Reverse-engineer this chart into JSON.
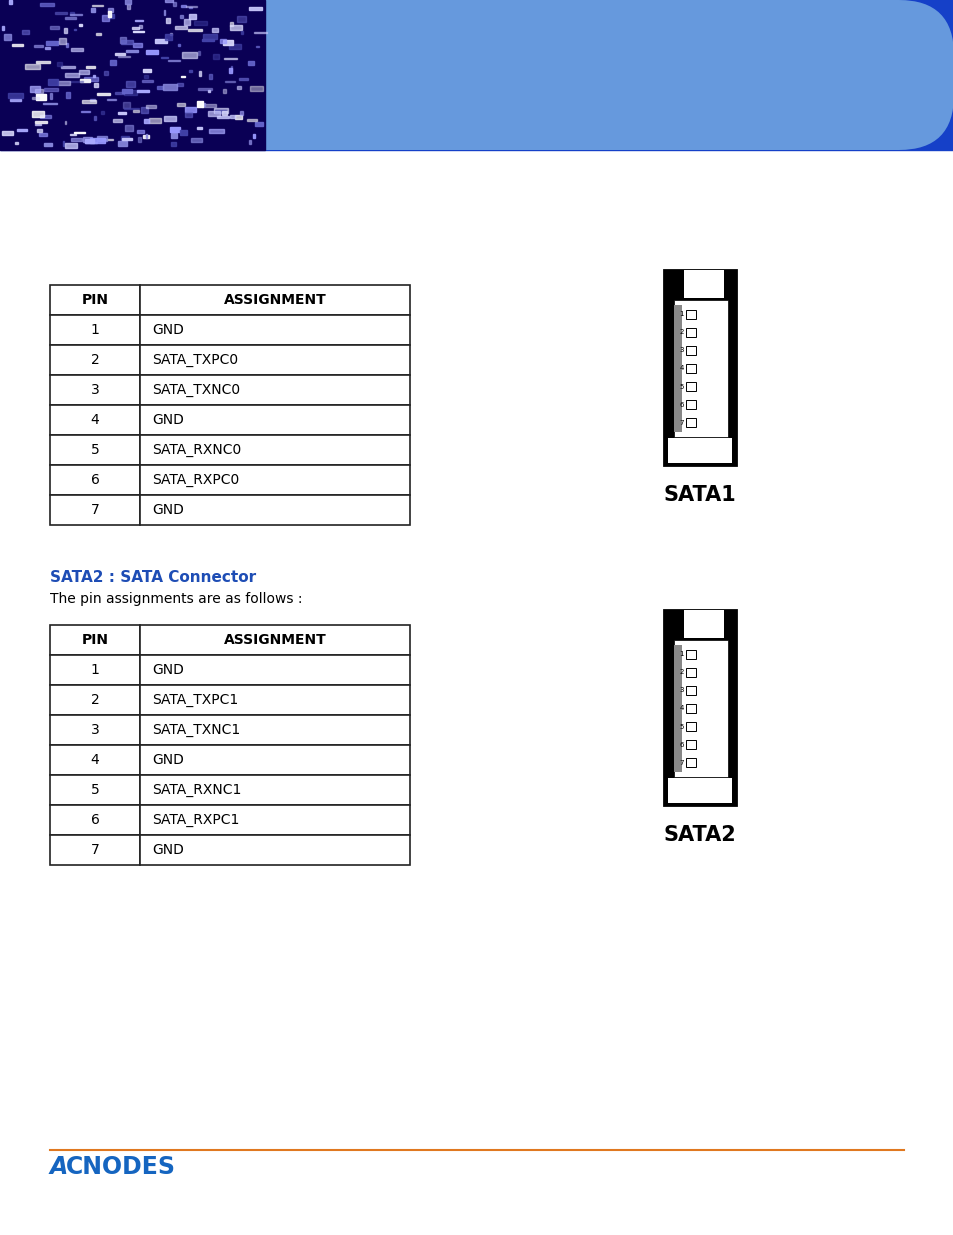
{
  "title_section2": "SATA2 : SATA Connector",
  "subtitle": "The pin assignments are as follows :",
  "table1_pins": [
    "PIN",
    "1",
    "2",
    "3",
    "4",
    "5",
    "6",
    "7"
  ],
  "table1_assignments": [
    "ASSIGNMENT",
    "GND",
    "SATA_TXPC0",
    "SATA_TXNC0",
    "GND",
    "SATA_RXNC0",
    "SATA_RXPC0",
    "GND"
  ],
  "table2_pins": [
    "PIN",
    "1",
    "2",
    "3",
    "4",
    "5",
    "6",
    "7"
  ],
  "table2_assignments": [
    "ASSIGNMENT",
    "GND",
    "SATA_TXPC1",
    "SATA_TXNC1",
    "GND",
    "SATA_RXNC1",
    "SATA_RXPC1",
    "GND"
  ],
  "sata1_label": "SATA1",
  "sata2_label": "SATA2",
  "page_bg": "#ffffff",
  "text_color": "#000000",
  "blue_color": "#1e4db5",
  "acnodes_color": "#1565c0",
  "orange_line_color": "#e07820",
  "figsize": [
    9.54,
    12.35
  ],
  "dpi": 100
}
